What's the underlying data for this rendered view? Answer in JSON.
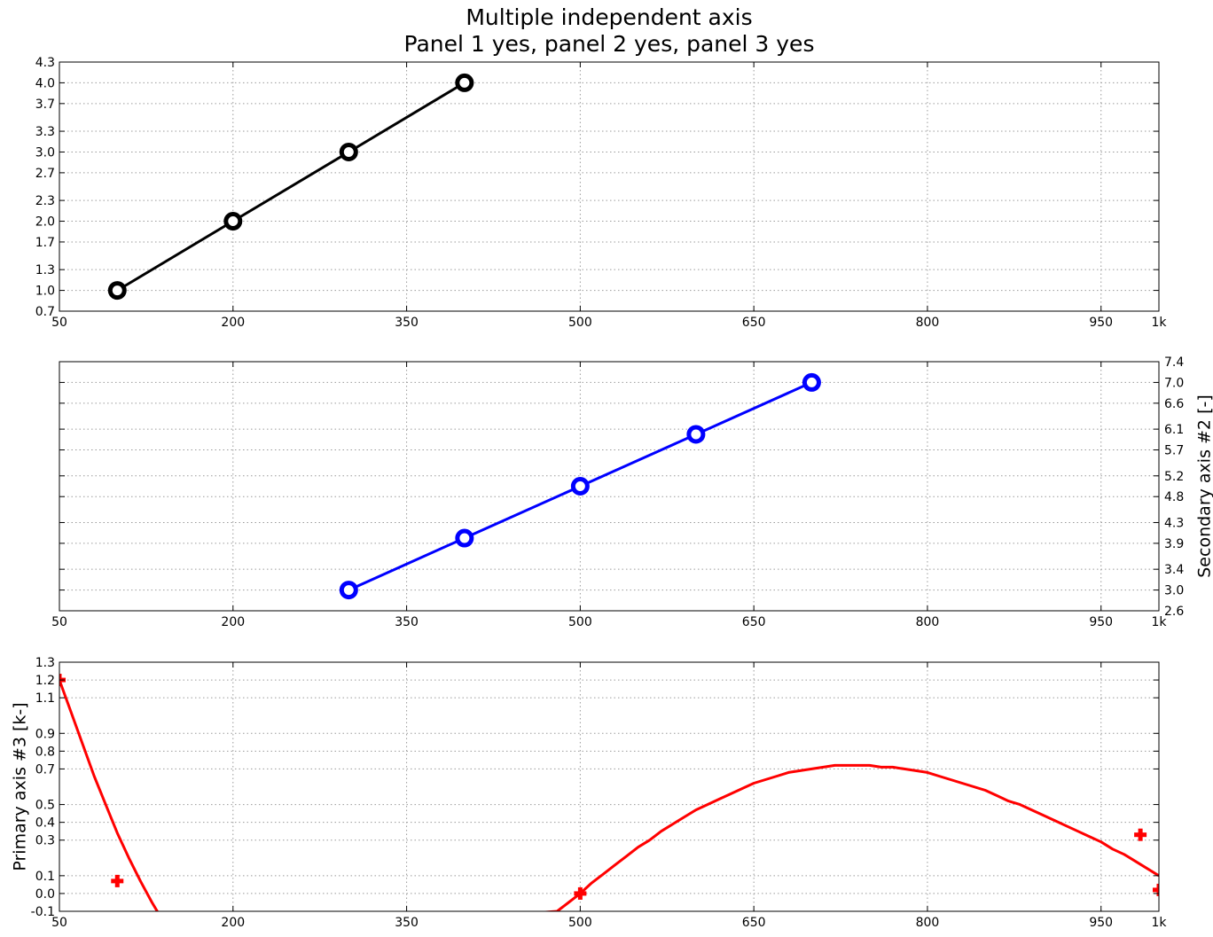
{
  "title": "Multiple independent axis",
  "subtitle": "Panel 1 yes, panel 2 yes, panel 3 yes",
  "chart_data": [
    {
      "type": "line",
      "panel": 1,
      "grid": true,
      "xlim": [
        50,
        1000
      ],
      "ylim": [
        0.7,
        4.3
      ],
      "x_ticks": [
        {
          "value": 50,
          "label": "50"
        },
        {
          "value": 200,
          "label": "200"
        },
        {
          "value": 350,
          "label": "350"
        },
        {
          "value": 500,
          "label": "500"
        },
        {
          "value": 650,
          "label": "650"
        },
        {
          "value": 800,
          "label": "800"
        },
        {
          "value": 950,
          "label": "950"
        },
        {
          "value": 1000,
          "label": "1k"
        }
      ],
      "y_axis_side": "left",
      "y_ticks": [
        {
          "value": 0.7,
          "label": "0.7"
        },
        {
          "value": 1.0,
          "label": "1.0"
        },
        {
          "value": 1.3,
          "label": "1.3"
        },
        {
          "value": 1.7,
          "label": "1.7"
        },
        {
          "value": 2.0,
          "label": "2.0"
        },
        {
          "value": 2.3,
          "label": "2.3"
        },
        {
          "value": 2.7,
          "label": "2.7"
        },
        {
          "value": 3.0,
          "label": "3.0"
        },
        {
          "value": 3.3,
          "label": "3.3"
        },
        {
          "value": 3.7,
          "label": "3.7"
        },
        {
          "value": 4.0,
          "label": "4.0"
        },
        {
          "value": 4.3,
          "label": "4.3"
        }
      ],
      "ylabel": "",
      "series": [
        {
          "color": "#000000",
          "marker": "circle",
          "x": [
            100,
            200,
            300,
            400
          ],
          "y": [
            1.0,
            2.0,
            3.0,
            4.0
          ]
        }
      ]
    },
    {
      "type": "line",
      "panel": 2,
      "grid": true,
      "xlim": [
        50,
        1000
      ],
      "ylim": [
        2.6,
        7.4
      ],
      "x_ticks": [
        {
          "value": 50,
          "label": "50"
        },
        {
          "value": 200,
          "label": "200"
        },
        {
          "value": 350,
          "label": "350"
        },
        {
          "value": 500,
          "label": "500"
        },
        {
          "value": 650,
          "label": "650"
        },
        {
          "value": 800,
          "label": "800"
        },
        {
          "value": 950,
          "label": "950"
        },
        {
          "value": 1000,
          "label": "1k"
        }
      ],
      "y_axis_side": "right",
      "y_ticks": [
        {
          "value": 2.6,
          "label": "2.6"
        },
        {
          "value": 3.0,
          "label": "3.0"
        },
        {
          "value": 3.4,
          "label": "3.4"
        },
        {
          "value": 3.9,
          "label": "3.9"
        },
        {
          "value": 4.3,
          "label": "4.3"
        },
        {
          "value": 4.8,
          "label": "4.8"
        },
        {
          "value": 5.2,
          "label": "5.2"
        },
        {
          "value": 5.7,
          "label": "5.7"
        },
        {
          "value": 6.1,
          "label": "6.1"
        },
        {
          "value": 6.6,
          "label": "6.6"
        },
        {
          "value": 7.0,
          "label": "7.0"
        },
        {
          "value": 7.4,
          "label": "7.4"
        }
      ],
      "ylabel": "Secondary axis #2 [-]",
      "series": [
        {
          "color": "#0000ff",
          "marker": "circle",
          "x": [
            300,
            400,
            500,
            600,
            700
          ],
          "y": [
            3.0,
            4.0,
            5.0,
            6.0,
            7.0
          ]
        }
      ]
    },
    {
      "type": "line",
      "panel": 3,
      "grid": true,
      "xlim": [
        50,
        1000
      ],
      "ylim": [
        -0.1,
        1.3
      ],
      "x_ticks": [
        {
          "value": 50,
          "label": "50"
        },
        {
          "value": 200,
          "label": "200"
        },
        {
          "value": 350,
          "label": "350"
        },
        {
          "value": 500,
          "label": "500"
        },
        {
          "value": 650,
          "label": "650"
        },
        {
          "value": 800,
          "label": "800"
        },
        {
          "value": 950,
          "label": "950"
        },
        {
          "value": 1000,
          "label": "1k"
        }
      ],
      "y_axis_side": "left",
      "y_ticks": [
        {
          "value": -0.1,
          "label": "-0.1"
        },
        {
          "value": 0.0,
          "label": "0.0"
        },
        {
          "value": 0.1,
          "label": "0.1"
        },
        {
          "value": 0.3,
          "label": "0.3"
        },
        {
          "value": 0.4,
          "label": "0.4"
        },
        {
          "value": 0.5,
          "label": "0.5"
        },
        {
          "value": 0.7,
          "label": "0.7"
        },
        {
          "value": 0.8,
          "label": "0.8"
        },
        {
          "value": 0.9,
          "label": "0.9"
        },
        {
          "value": 1.1,
          "label": "1.1"
        },
        {
          "value": 1.2,
          "label": "1.2"
        },
        {
          "value": 1.3,
          "label": "1.3"
        }
      ],
      "ylabel": "Primary axis #3 [k-]",
      "series": [
        {
          "color": "#ff0000",
          "marker": "none",
          "x": [
            50,
            60,
            70,
            80,
            90,
            100,
            110,
            120,
            130,
            140,
            150,
            480,
            490,
            500,
            510,
            520,
            530,
            540,
            550,
            560,
            570,
            580,
            590,
            600,
            610,
            620,
            630,
            640,
            650,
            660,
            670,
            680,
            690,
            700,
            710,
            720,
            730,
            740,
            750,
            760,
            770,
            780,
            790,
            800,
            810,
            820,
            830,
            840,
            850,
            860,
            870,
            880,
            890,
            900,
            910,
            920,
            930,
            940,
            950,
            960,
            970,
            980,
            990,
            1000
          ],
          "y": [
            1.2,
            1.02,
            0.84,
            0.66,
            0.5,
            0.34,
            0.2,
            0.07,
            -0.05,
            -0.16,
            -0.26,
            -0.1,
            -0.05,
            0.0,
            0.06,
            0.11,
            0.16,
            0.21,
            0.26,
            0.3,
            0.35,
            0.39,
            0.43,
            0.47,
            0.5,
            0.53,
            0.56,
            0.59,
            0.62,
            0.64,
            0.66,
            0.68,
            0.69,
            0.7,
            0.71,
            0.72,
            0.72,
            0.72,
            0.72,
            0.71,
            0.71,
            0.7,
            0.69,
            0.68,
            0.66,
            0.64,
            0.62,
            0.6,
            0.58,
            0.55,
            0.52,
            0.5,
            0.47,
            0.44,
            0.41,
            0.38,
            0.35,
            0.32,
            0.29,
            0.25,
            0.22,
            0.18,
            0.14,
            0.1
          ]
        },
        {
          "color": "#ff0000",
          "marker": "plus",
          "x": [
            50,
            100,
            500,
            984,
            1000
          ],
          "y": [
            1.2,
            0.07,
            0.0,
            0.33,
            0.02
          ]
        }
      ]
    }
  ]
}
